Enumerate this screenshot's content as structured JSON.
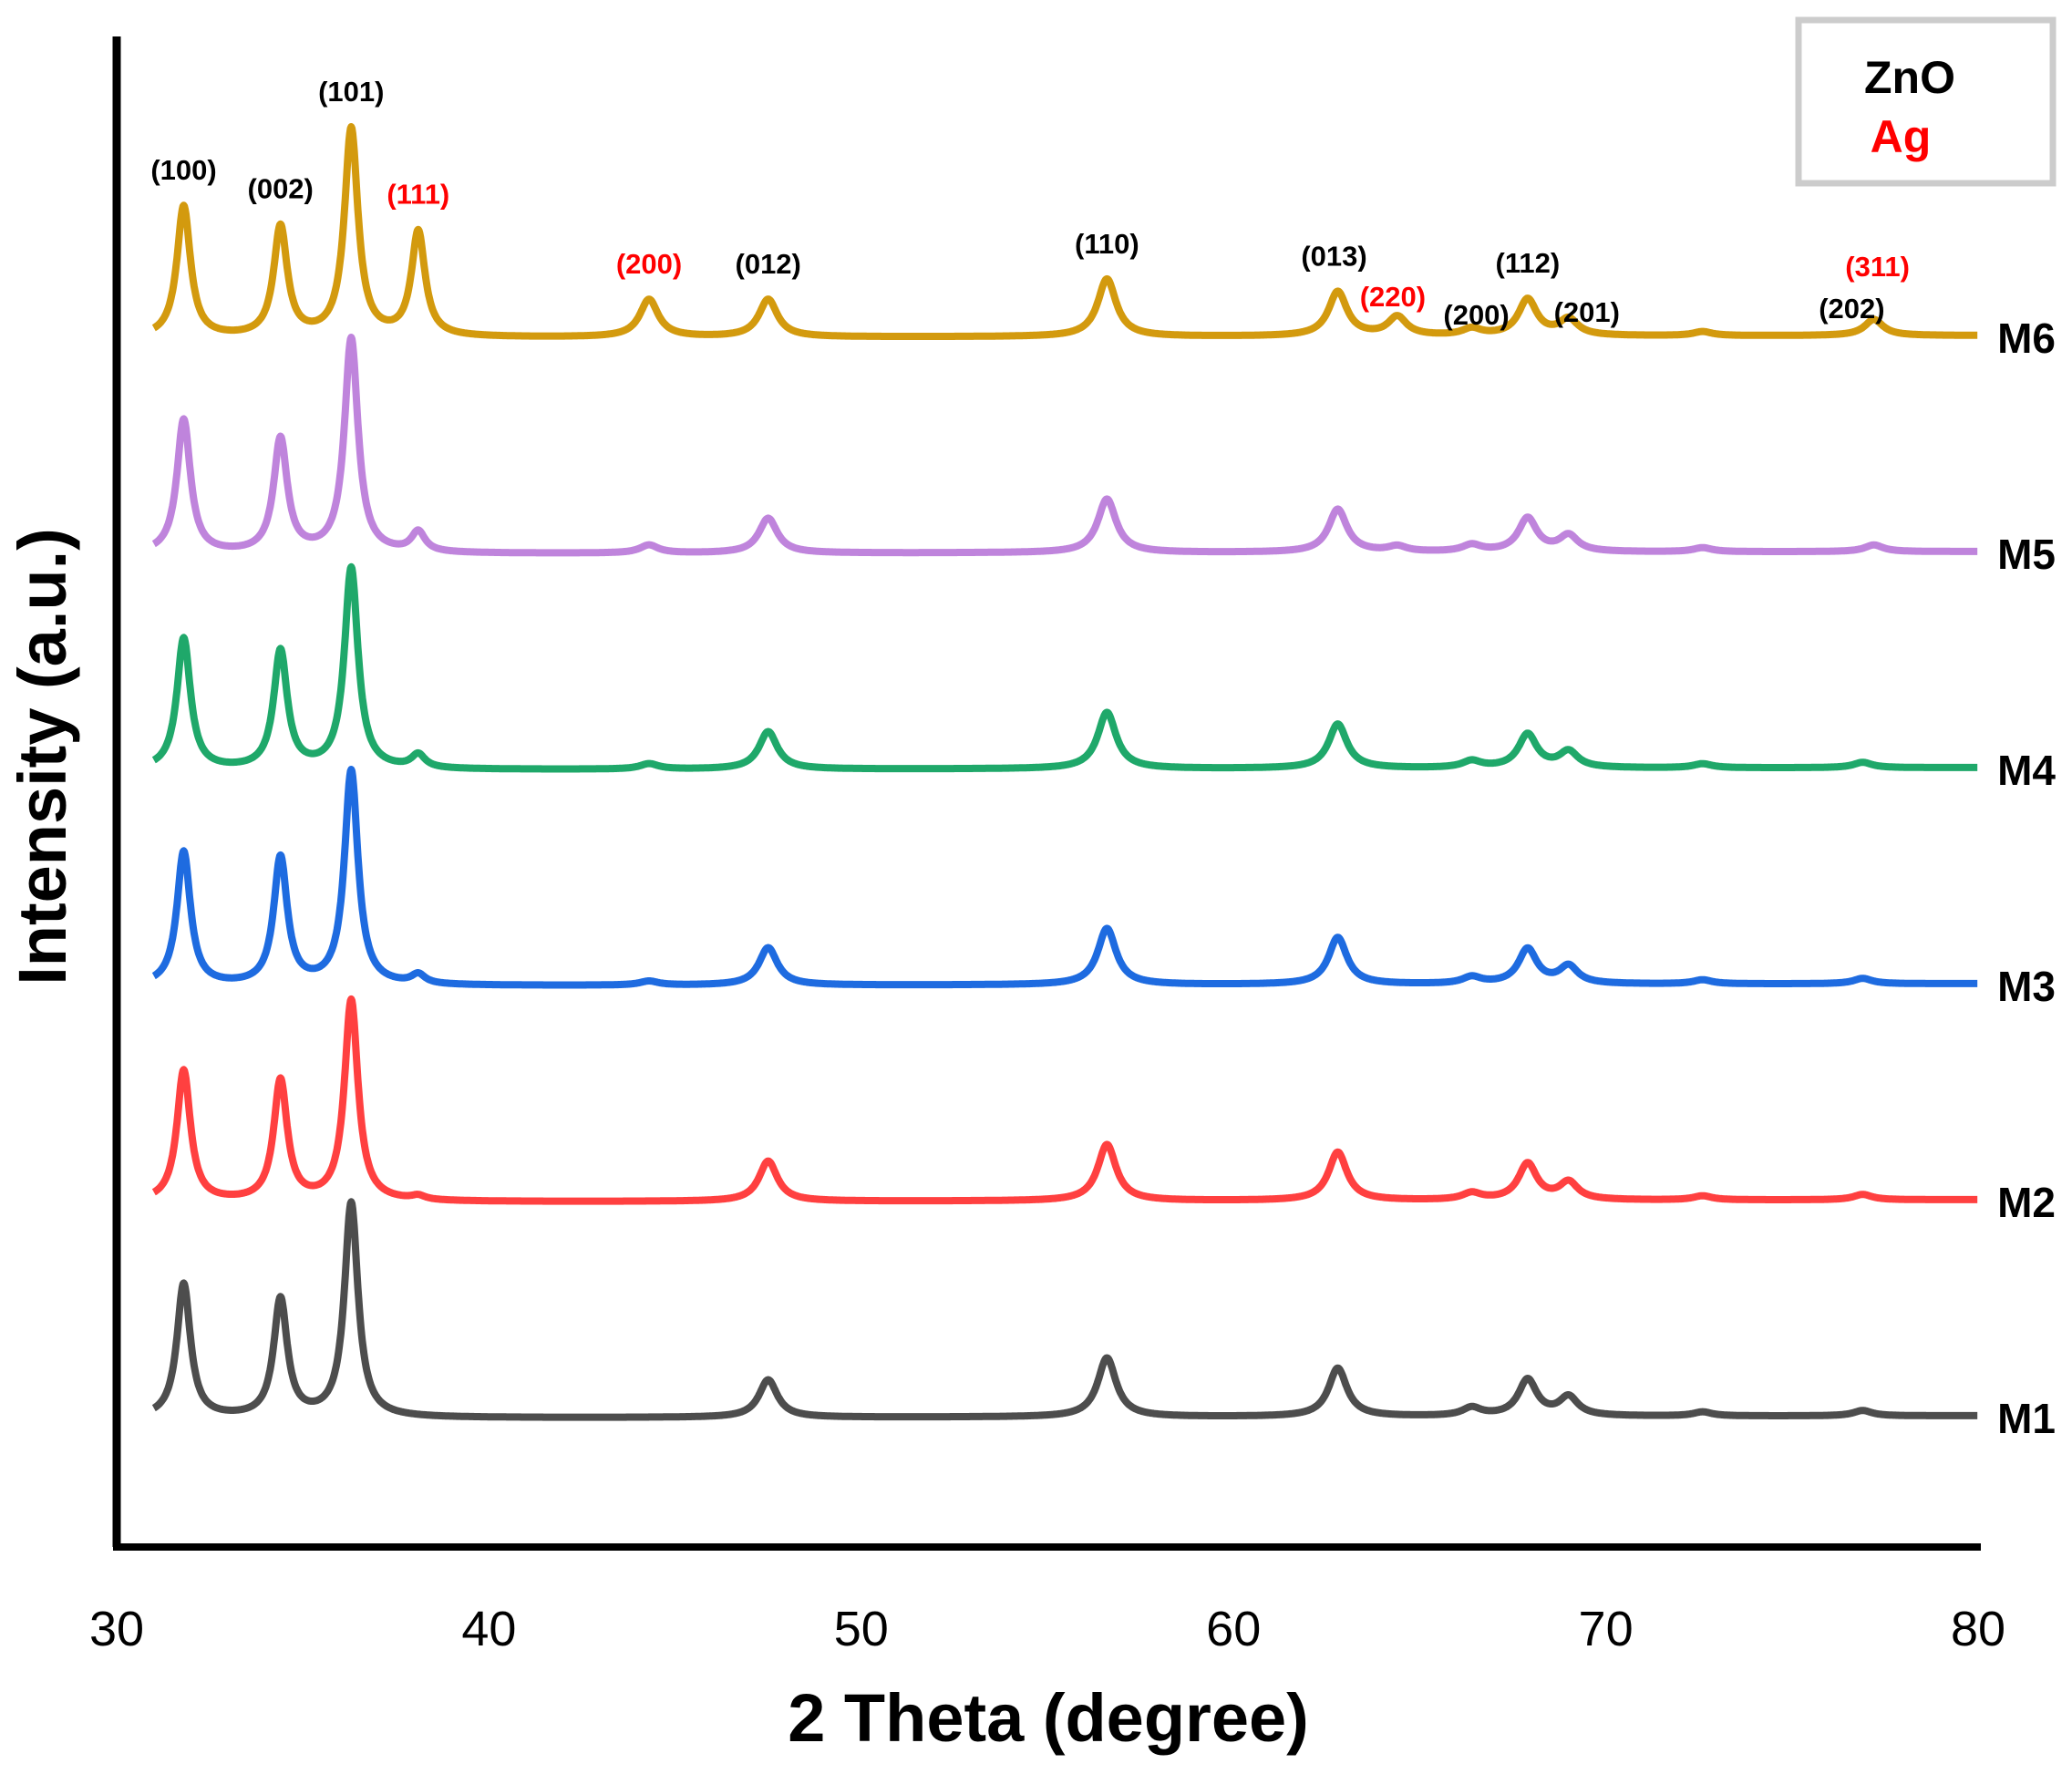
{
  "chart_data": {
    "type": "line",
    "xlabel": "2 Theta (degree)",
    "ylabel": "Intensity (a.u.)",
    "xlim": [
      30,
      80
    ],
    "x_ticks": [
      "30",
      "40",
      "50",
      "60",
      "70",
      "80"
    ],
    "legend": [
      {
        "label": "ZnO",
        "color": "#000000"
      },
      {
        "label": "Ag",
        "color": "#ff0000"
      }
    ],
    "series": [
      {
        "name": "M1",
        "color": "#4d4d4d",
        "offset": 0,
        "peaks": [
          [
            31.8,
            1.0
          ],
          [
            34.4,
            0.88
          ],
          [
            36.3,
            1.6
          ],
          [
            47.5,
            0.28
          ],
          [
            56.6,
            0.44
          ],
          [
            62.8,
            0.36
          ],
          [
            66.4,
            0.06
          ],
          [
            67.9,
            0.27
          ],
          [
            69.0,
            0.14
          ],
          [
            72.6,
            0.03
          ],
          [
            76.9,
            0.04
          ]
        ]
      },
      {
        "name": "M2",
        "color": "#ff4040",
        "offset": 1,
        "peaks": [
          [
            31.8,
            0.98
          ],
          [
            34.4,
            0.9
          ],
          [
            36.3,
            1.5
          ],
          [
            38.1,
            0.03
          ],
          [
            47.5,
            0.3
          ],
          [
            56.6,
            0.42
          ],
          [
            62.8,
            0.36
          ],
          [
            66.4,
            0.05
          ],
          [
            67.9,
            0.27
          ],
          [
            69.0,
            0.13
          ],
          [
            72.6,
            0.03
          ],
          [
            76.9,
            0.04
          ]
        ]
      },
      {
        "name": "M3",
        "color": "#1e6be0",
        "offset": 2,
        "peaks": [
          [
            31.8,
            1.0
          ],
          [
            34.4,
            0.95
          ],
          [
            36.3,
            1.6
          ],
          [
            38.1,
            0.07
          ],
          [
            44.3,
            0.03
          ],
          [
            47.5,
            0.28
          ],
          [
            56.6,
            0.42
          ],
          [
            62.8,
            0.35
          ],
          [
            66.4,
            0.05
          ],
          [
            67.9,
            0.26
          ],
          [
            69.0,
            0.13
          ],
          [
            72.6,
            0.03
          ],
          [
            76.9,
            0.04
          ]
        ]
      },
      {
        "name": "M4",
        "color": "#1fa86a",
        "offset": 3,
        "peaks": [
          [
            31.8,
            0.98
          ],
          [
            34.4,
            0.88
          ],
          [
            36.3,
            1.5
          ],
          [
            38.1,
            0.1
          ],
          [
            44.3,
            0.04
          ],
          [
            47.5,
            0.28
          ],
          [
            56.6,
            0.42
          ],
          [
            62.8,
            0.33
          ],
          [
            66.4,
            0.05
          ],
          [
            67.9,
            0.25
          ],
          [
            69.0,
            0.12
          ],
          [
            72.6,
            0.03
          ],
          [
            76.9,
            0.04
          ]
        ]
      },
      {
        "name": "M5",
        "color": "#bf84dc",
        "offset": 4,
        "peaks": [
          [
            31.8,
            1.0
          ],
          [
            34.4,
            0.85
          ],
          [
            36.3,
            1.6
          ],
          [
            38.1,
            0.15
          ],
          [
            44.3,
            0.06
          ],
          [
            47.5,
            0.26
          ],
          [
            56.6,
            0.4
          ],
          [
            62.8,
            0.32
          ],
          [
            64.4,
            0.04
          ],
          [
            66.4,
            0.05
          ],
          [
            67.9,
            0.25
          ],
          [
            69.0,
            0.12
          ],
          [
            72.6,
            0.03
          ],
          [
            77.2,
            0.05
          ]
        ]
      },
      {
        "name": "M6",
        "color": "#d39a0e",
        "offset": 5,
        "peaks": [
          [
            31.8,
            0.98
          ],
          [
            34.4,
            0.82
          ],
          [
            36.3,
            1.55
          ],
          [
            38.1,
            0.78
          ],
          [
            44.3,
            0.28
          ],
          [
            47.5,
            0.28
          ],
          [
            56.6,
            0.43
          ],
          [
            62.8,
            0.33
          ],
          [
            64.4,
            0.14
          ],
          [
            66.4,
            0.05
          ],
          [
            67.9,
            0.27
          ],
          [
            69.0,
            0.12
          ],
          [
            72.6,
            0.03
          ],
          [
            77.2,
            0.12
          ]
        ]
      }
    ],
    "peak_labels": [
      {
        "text": "(100)",
        "x": 31.8,
        "phase": "ZnO"
      },
      {
        "text": "(002)",
        "x": 34.4,
        "phase": "ZnO"
      },
      {
        "text": "(101)",
        "x": 36.3,
        "phase": "ZnO"
      },
      {
        "text": "(111)",
        "x": 38.1,
        "phase": "Ag"
      },
      {
        "text": "(200)",
        "x": 44.3,
        "phase": "Ag"
      },
      {
        "text": "(012)",
        "x": 47.5,
        "phase": "ZnO"
      },
      {
        "text": "(110)",
        "x": 56.6,
        "phase": "ZnO"
      },
      {
        "text": "(013)",
        "x": 62.8,
        "phase": "ZnO"
      },
      {
        "text": "(220)",
        "x": 64.4,
        "phase": "Ag"
      },
      {
        "text": "(200)",
        "x": 66.4,
        "phase": "ZnO"
      },
      {
        "text": "(112)",
        "x": 67.9,
        "phase": "ZnO"
      },
      {
        "text": "(201)",
        "x": 69.0,
        "phase": "ZnO"
      },
      {
        "text": "(202)",
        "x": 76.9,
        "phase": "ZnO"
      },
      {
        "text": "(311)",
        "x": 77.2,
        "phase": "Ag"
      }
    ]
  }
}
